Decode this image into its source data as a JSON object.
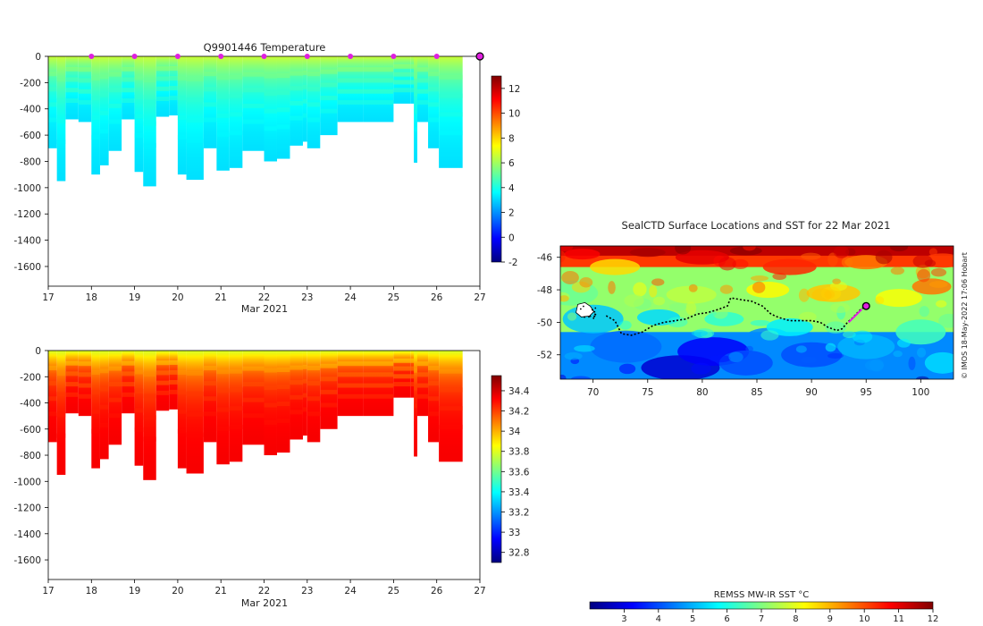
{
  "figure": {
    "credit": "© IMOS 18-May-2022 17:06 Hobart",
    "accent_marker_color": "#e020e0",
    "profile_fill_palette": "jet"
  },
  "chart_data": [
    {
      "type": "heatmap",
      "name": "temperature-section",
      "title": "Q9901446  Temperature",
      "xlabel": "Mar 2021",
      "ylabel": "",
      "x_ticks": [
        "17",
        "18",
        "19",
        "20",
        "21",
        "22",
        "23",
        "24",
        "25",
        "26",
        "27"
      ],
      "y_ticks": [
        "0",
        "-200",
        "-400",
        "-600",
        "-800",
        "-1000",
        "-1200",
        "-1400",
        "-1600"
      ],
      "xlim": [
        17,
        27
      ],
      "ylim": [
        -1750,
        0
      ],
      "colorbar": {
        "ticks": [
          "12",
          "10",
          "8",
          "6",
          "4",
          "2",
          "0",
          "-2"
        ],
        "range": [
          -2,
          13
        ]
      },
      "surface_marker_days": [
        18,
        19,
        20,
        21,
        22,
        23,
        24,
        25,
        26
      ],
      "profiles": [
        {
          "x0": 17.0,
          "x1": 17.2,
          "depth": 700
        },
        {
          "x0": 17.2,
          "x1": 17.4,
          "depth": 950
        },
        {
          "x0": 17.4,
          "x1": 17.7,
          "depth": 480
        },
        {
          "x0": 17.7,
          "x1": 18.0,
          "depth": 500
        },
        {
          "x0": 18.0,
          "x1": 18.2,
          "depth": 900
        },
        {
          "x0": 18.2,
          "x1": 18.4,
          "depth": 830
        },
        {
          "x0": 18.4,
          "x1": 18.7,
          "depth": 720
        },
        {
          "x0": 18.7,
          "x1": 19.0,
          "depth": 480
        },
        {
          "x0": 19.0,
          "x1": 19.2,
          "depth": 880
        },
        {
          "x0": 19.2,
          "x1": 19.5,
          "depth": 990
        },
        {
          "x0": 19.5,
          "x1": 19.8,
          "depth": 460
        },
        {
          "x0": 19.8,
          "x1": 20.0,
          "depth": 450
        },
        {
          "x0": 20.0,
          "x1": 20.2,
          "depth": 900
        },
        {
          "x0": 20.2,
          "x1": 20.6,
          "depth": 940
        },
        {
          "x0": 20.6,
          "x1": 20.9,
          "depth": 700
        },
        {
          "x0": 20.9,
          "x1": 21.2,
          "depth": 870
        },
        {
          "x0": 21.2,
          "x1": 21.5,
          "depth": 850
        },
        {
          "x0": 21.5,
          "x1": 22.0,
          "depth": 720
        },
        {
          "x0": 22.0,
          "x1": 22.3,
          "depth": 800
        },
        {
          "x0": 22.3,
          "x1": 22.6,
          "depth": 780
        },
        {
          "x0": 22.6,
          "x1": 22.9,
          "depth": 680
        },
        {
          "x0": 22.9,
          "x1": 23.0,
          "depth": 650
        },
        {
          "x0": 23.0,
          "x1": 23.3,
          "depth": 700
        },
        {
          "x0": 23.3,
          "x1": 23.7,
          "depth": 600
        },
        {
          "x0": 23.7,
          "x1": 24.3,
          "depth": 500
        },
        {
          "x0": 24.3,
          "x1": 25.0,
          "depth": 500
        },
        {
          "x0": 25.0,
          "x1": 25.4,
          "depth": 360
        },
        {
          "x0": 25.4,
          "x1": 25.55,
          "depth": 360
        },
        {
          "x0": 25.47,
          "x1": 25.55,
          "depth": 810
        },
        {
          "x0": 25.55,
          "x1": 25.8,
          "depth": 500
        },
        {
          "x0": 25.8,
          "x1": 26.05,
          "depth": 700
        },
        {
          "x0": 26.05,
          "x1": 26.6,
          "depth": 850
        }
      ]
    },
    {
      "type": "heatmap",
      "name": "salinity-section",
      "title": "",
      "xlabel": "Mar 2021",
      "ylabel": "",
      "x_ticks": [
        "17",
        "18",
        "19",
        "20",
        "21",
        "22",
        "23",
        "24",
        "25",
        "26",
        "27"
      ],
      "y_ticks": [
        "0",
        "-200",
        "-400",
        "-600",
        "-800",
        "-1000",
        "-1200",
        "-1400",
        "-1600"
      ],
      "xlim": [
        17,
        27
      ],
      "ylim": [
        -1750,
        0
      ],
      "colorbar": {
        "ticks": [
          "34.4",
          "34.2",
          "34",
          "33.8",
          "33.6",
          "33.4",
          "33.2",
          "33",
          "32.8"
        ],
        "range": [
          32.7,
          34.55
        ]
      }
    },
    {
      "type": "heatmap",
      "name": "sst-map",
      "title": "SealCTD Surface Locations and SST for 22 Mar 2021",
      "xlabel": "",
      "ylabel": "",
      "x_ticks": [
        "70",
        "75",
        "80",
        "85",
        "90",
        "95",
        "100"
      ],
      "y_ticks": [
        "-46",
        "-48",
        "-50",
        "-52"
      ],
      "xlim": [
        67,
        103
      ],
      "ylim": [
        -53.5,
        -45.3
      ],
      "track": [
        [
          71.2,
          -49.6
        ],
        [
          72.0,
          -49.9
        ],
        [
          72.6,
          -50.7
        ],
        [
          73.5,
          -50.8
        ],
        [
          74.5,
          -50.6
        ],
        [
          75.5,
          -50.2
        ],
        [
          76.5,
          -50.0
        ],
        [
          77.5,
          -49.9
        ],
        [
          78.5,
          -49.8
        ],
        [
          79.5,
          -49.5
        ],
        [
          80.5,
          -49.4
        ],
        [
          81.5,
          -49.2
        ],
        [
          82.3,
          -49.0
        ],
        [
          82.6,
          -48.5
        ],
        [
          83.5,
          -48.6
        ],
        [
          84.5,
          -48.7
        ],
        [
          85.5,
          -49.0
        ],
        [
          86.3,
          -49.5
        ],
        [
          87.0,
          -49.7
        ],
        [
          88.0,
          -49.9
        ],
        [
          89.0,
          -49.9
        ],
        [
          90.0,
          -49.9
        ],
        [
          90.8,
          -50.0
        ],
        [
          91.5,
          -50.3
        ],
        [
          92.3,
          -50.5
        ],
        [
          92.8,
          -50.4
        ],
        [
          93.3,
          -50.0
        ],
        [
          93.8,
          -49.7
        ],
        [
          94.5,
          -49.2
        ],
        [
          95.0,
          -49.0
        ]
      ],
      "latest_position": [
        95.0,
        -49.0
      ],
      "colorbar": {
        "label": "REMSS MW-IR SST °C",
        "ticks": [
          "3",
          "4",
          "5",
          "6",
          "7",
          "8",
          "9",
          "10",
          "11",
          "12"
        ],
        "range": [
          2,
          12
        ]
      }
    }
  ]
}
